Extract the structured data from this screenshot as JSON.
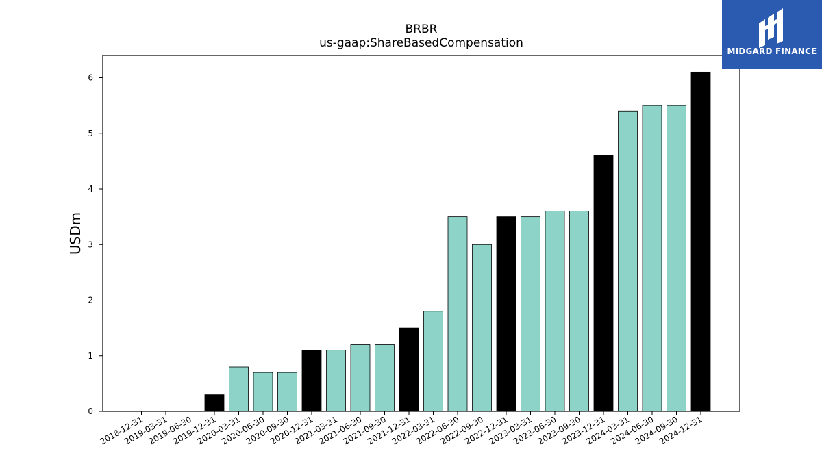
{
  "logo": {
    "text": "MIDGARD FINANCE",
    "icon": "midgard-logo-icon",
    "background": "#2b5bb0"
  },
  "chart_data": {
    "type": "bar",
    "title": "BRBR",
    "subtitle": "us-gaap:ShareBasedCompensation",
    "xlabel": "",
    "ylabel": "USDm",
    "ylim": [
      0,
      6.4
    ],
    "yticks": [
      0,
      1,
      2,
      3,
      4,
      5,
      6
    ],
    "grid": false,
    "colors": {
      "quarter": "#8dd3c7",
      "year_end": "#000000",
      "edge": "#000000"
    },
    "categories": [
      "2018-12-31",
      "2019-03-31",
      "2019-06-30",
      "2019-12-31",
      "2020-03-31",
      "2020-06-30",
      "2020-09-30",
      "2020-12-31",
      "2021-03-31",
      "2021-06-30",
      "2021-09-30",
      "2021-12-31",
      "2022-03-31",
      "2022-06-30",
      "2022-09-30",
      "2022-12-31",
      "2023-03-31",
      "2023-06-30",
      "2023-09-30",
      "2023-12-31",
      "2024-03-31",
      "2024-06-30",
      "2024-09-30",
      "2024-12-31"
    ],
    "values": [
      0,
      0,
      0,
      0.3,
      0.8,
      0.7,
      0.7,
      1.1,
      1.1,
      1.2,
      1.2,
      1.5,
      1.8,
      3.5,
      3.0,
      3.5,
      3.5,
      3.6,
      3.6,
      4.6,
      5.4,
      5.5,
      5.5,
      6.1
    ],
    "year_end": [
      false,
      false,
      false,
      true,
      false,
      false,
      false,
      true,
      false,
      false,
      false,
      true,
      false,
      false,
      false,
      true,
      false,
      false,
      false,
      true,
      false,
      false,
      false,
      true
    ]
  }
}
